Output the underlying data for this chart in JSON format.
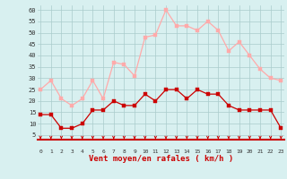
{
  "hours": [
    0,
    1,
    2,
    3,
    4,
    5,
    6,
    7,
    8,
    9,
    10,
    11,
    12,
    13,
    14,
    15,
    16,
    17,
    18,
    19,
    20,
    21,
    22,
    23
  ],
  "mean_wind": [
    14,
    14,
    8,
    8,
    10,
    16,
    16,
    20,
    18,
    18,
    23,
    20,
    25,
    25,
    21,
    25,
    23,
    23,
    18,
    16,
    16,
    16,
    16,
    8
  ],
  "gust_wind": [
    25,
    29,
    21,
    18,
    21,
    29,
    21,
    37,
    36,
    31,
    48,
    49,
    60,
    53,
    53,
    51,
    55,
    51,
    42,
    46,
    40,
    34,
    30,
    29
  ],
  "mean_color": "#cc0000",
  "gust_color": "#ffaaaa",
  "bg_color": "#d8f0f0",
  "grid_color": "#aacccc",
  "axis_line_color": "#cc0000",
  "xlabel": "Vent moyen/en rafales ( km/h )",
  "xlabel_color": "#cc0000",
  "ytick_labels": [
    "5",
    "10",
    "15",
    "20",
    "25",
    "30",
    "35",
    "40",
    "45",
    "50",
    "55",
    "60"
  ],
  "ytick_vals": [
    5,
    10,
    15,
    20,
    25,
    30,
    35,
    40,
    45,
    50,
    55,
    60
  ],
  "ylim": [
    3,
    62
  ],
  "xlim": [
    -0.3,
    23.3
  ]
}
